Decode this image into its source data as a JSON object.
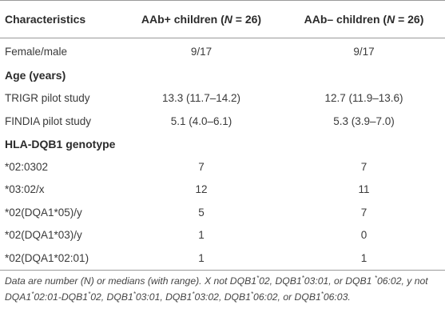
{
  "table": {
    "headers": {
      "col1": "Characteristics",
      "col2_prefix": "AAb+ children (",
      "col2_n": "N",
      "col2_suffix": " = 26)",
      "col3_prefix": "AAb– children (",
      "col3_n": "N",
      "col3_suffix": " = 26)"
    },
    "rows": [
      {
        "label": "Female/male",
        "aab_pos": "9/17",
        "aab_neg": "9/17"
      },
      {
        "label": "Age (years)",
        "section": true
      },
      {
        "label": "TRIGR pilot study",
        "aab_pos": "13.3 (11.7–14.2)",
        "aab_neg": "12.7 (11.9–13.6)"
      },
      {
        "label": "FINDIA pilot study",
        "aab_pos": "5.1 (4.0–6.1)",
        "aab_neg": "5.3 (3.9–7.0)"
      },
      {
        "label": "HLA-DQB1 genotype",
        "section": true
      },
      {
        "label": "*02:0302",
        "aab_pos": "7",
        "aab_neg": "7"
      },
      {
        "label": "*03:02/x",
        "aab_pos": "12",
        "aab_neg": "11"
      },
      {
        "label": "*02(DQA1*05)/y",
        "aab_pos": "5",
        "aab_neg": "7"
      },
      {
        "label": "*02(DQA1*03)/y",
        "aab_pos": "1",
        "aab_neg": "0"
      },
      {
        "label": "*02(DQA1*02:01)",
        "aab_pos": "1",
        "aab_neg": "1"
      }
    ]
  },
  "footnote": {
    "t1": "Data are number (N) or medians (with range). X not DQB1",
    "t2": "02, DQB1",
    "t3": "03:01, or DQB1",
    "t4": "06:02, y not DQA1",
    "t5": "02:01-DQB1",
    "t6": "02, DQB1",
    "t7": "03:01, DQB1",
    "t8": "03:02, DQB1",
    "t9": "06:02, or DQB1",
    "t10": "06:03.",
    "star": "*"
  }
}
